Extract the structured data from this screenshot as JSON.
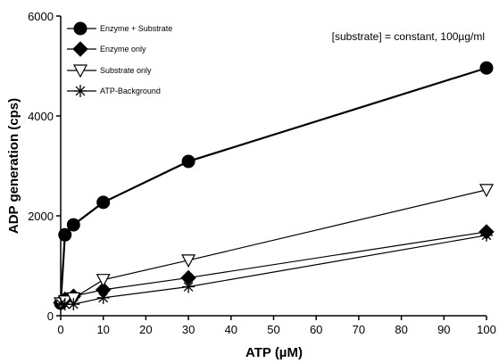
{
  "chart_data": {
    "type": "line",
    "xlabel": "ATP (µM)",
    "ylabel": "ADP generation (cps)",
    "annotation": "[substrate] = constant, 100µg/ml",
    "xlim": [
      0,
      100
    ],
    "ylim": [
      0,
      6000
    ],
    "x_ticks": [
      0,
      10,
      20,
      30,
      40,
      50,
      60,
      70,
      80,
      90,
      100
    ],
    "y_ticks": [
      0,
      2000,
      4000,
      6000
    ],
    "x_tick_labels": [
      "0",
      "10",
      "20",
      "30",
      "40",
      "50",
      "60",
      "70",
      "80",
      "90",
      "100"
    ],
    "y_tick_labels": [
      "0",
      "2000",
      "4000",
      "6000"
    ],
    "legend_position": "top-left",
    "grid": false,
    "series": [
      {
        "name": "Enzyme + Substrate",
        "marker": "circle-filled",
        "x": [
          0,
          1,
          3,
          10,
          30,
          100
        ],
        "y": [
          250,
          1620,
          1820,
          2270,
          3090,
          4960
        ]
      },
      {
        "name": "Enzyme only",
        "marker": "diamond-filled",
        "x": [
          0,
          1,
          3,
          10,
          30,
          100
        ],
        "y": [
          260,
          330,
          390,
          520,
          760,
          1680
        ]
      },
      {
        "name": "Substrate only",
        "marker": "triangle-down-open",
        "x": [
          0,
          1,
          3,
          10,
          30,
          100
        ],
        "y": [
          250,
          290,
          350,
          720,
          1110,
          2520
        ]
      },
      {
        "name": "ATP-Background",
        "marker": "asterisk",
        "x": [
          0,
          1,
          3,
          10,
          30,
          100
        ],
        "y": [
          240,
          230,
          230,
          360,
          580,
          1610
        ]
      }
    ]
  }
}
